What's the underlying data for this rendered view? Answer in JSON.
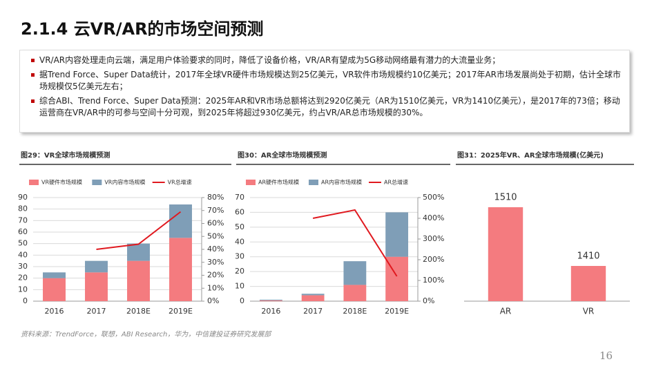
{
  "title": "2.1.4 云VR/AR的市场空间预测",
  "bullets": [
    "VR/AR内容处理走向云端，满足用户体验要求的同时，降低了设备价格，VR/AR有望成为5G移动网络最有潜力的大流量业务；",
    "据Trend Force、Super Data统计，2017年全球VR硬件市场规模达到25亿美元，VR软件市场规模约10亿美元；2017年AR市场发展尚处于初期，估计全球市场规模仅5亿美元左右；",
    "综合ABI、Trend Force、Super Data预测：2025年AR和VR市场总额将达到2920亿美元（AR为1510亿美元，VR为1410亿美元），是2017年的73倍；移动运营商在VR/AR中的可参与空间十分可观，到2025年将超过930亿美元，约占VR/AR总市场规模的30%。"
  ],
  "source": "资料来源：TrendForce，联想，ABI Research，华为，中信建投证券研究发展部",
  "page_number": "16",
  "chart_data": [
    {
      "type": "stacked_bar_line",
      "title": "图29：VR全球市场规模预测",
      "categories": [
        "2016",
        "2017",
        "2018E",
        "2019E"
      ],
      "series": [
        {
          "name": "VR硬件市场规模",
          "color": "#f47b7f",
          "values": [
            20,
            25,
            35,
            55
          ]
        },
        {
          "name": "VR内容市场规模",
          "color": "#7f9eb7",
          "values": [
            5,
            10,
            15,
            29
          ]
        },
        {
          "name": "VR总增速",
          "color": "#e0191f",
          "type": "line",
          "axis": "y2",
          "values": [
            null,
            40,
            44,
            69
          ]
        }
      ],
      "ylim": [
        0,
        90
      ],
      "yticks": [
        0,
        10,
        20,
        30,
        40,
        50,
        60,
        70,
        80,
        90
      ],
      "y2lim": [
        0,
        80
      ],
      "y2ticks": [
        {
          "value": 0,
          "label": "0%"
        },
        {
          "value": 10,
          "label": "10%"
        },
        {
          "value": 20,
          "label": "20%"
        },
        {
          "value": 30,
          "label": "30%"
        },
        {
          "value": 40,
          "label": "40%"
        },
        {
          "value": 50,
          "label": "50%"
        },
        {
          "value": 60,
          "label": "60%"
        },
        {
          "value": 70,
          "label": "70%"
        },
        {
          "value": 80,
          "label": "80%"
        }
      ],
      "grid": true
    },
    {
      "type": "stacked_bar_line",
      "title": "图30：AR全球市场规模预测",
      "categories": [
        "2016",
        "2017",
        "2018E",
        "2019E"
      ],
      "series": [
        {
          "name": "AR硬件市场规模",
          "color": "#f47b7f",
          "values": [
            0.5,
            4,
            11,
            30
          ]
        },
        {
          "name": "AR内容市场规模",
          "color": "#7f9eb7",
          "values": [
            0.5,
            1,
            16,
            30
          ]
        },
        {
          "name": "AR总增速",
          "color": "#e0191f",
          "type": "line",
          "axis": "y2",
          "values": [
            null,
            400,
            440,
            120
          ]
        }
      ],
      "ylim": [
        0,
        70
      ],
      "yticks": [
        0,
        10,
        20,
        30,
        40,
        50,
        60,
        70
      ],
      "y2lim": [
        0,
        500
      ],
      "y2ticks": [
        {
          "value": 0,
          "label": "0%"
        },
        {
          "value": 100,
          "label": "100%"
        },
        {
          "value": 200,
          "label": "200%"
        },
        {
          "value": 300,
          "label": "300%"
        },
        {
          "value": 400,
          "label": "400%"
        },
        {
          "value": 500,
          "label": "500%"
        }
      ],
      "grid": true
    },
    {
      "type": "bar",
      "title": "图31：2025年VR、AR全球市场规模(亿美元)",
      "categories": [
        "AR",
        "VR"
      ],
      "values": [
        1510,
        1410
      ],
      "color": "#f47b7f",
      "ylim": [
        1350,
        1550
      ],
      "grid": false
    }
  ]
}
